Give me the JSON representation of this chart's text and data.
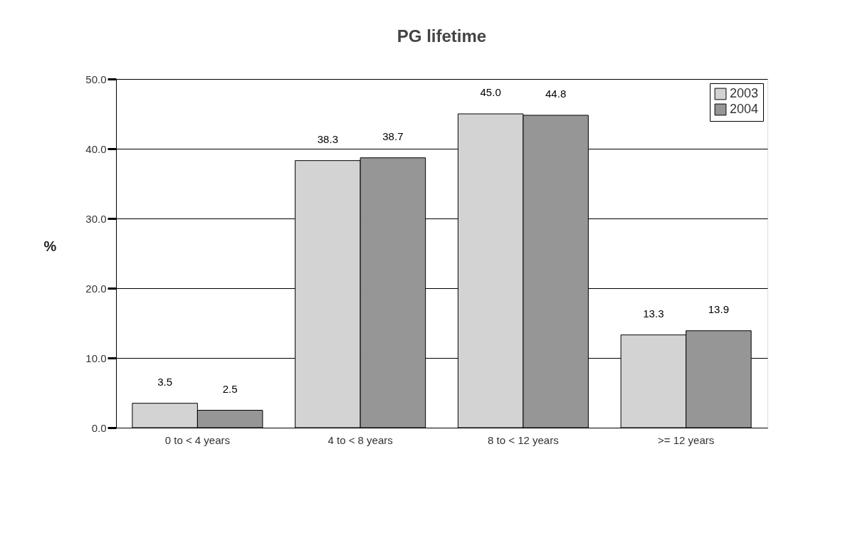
{
  "chart_data": {
    "type": "bar",
    "title": "PG lifetime",
    "ylabel": "%",
    "categories": [
      "0 to < 4 years",
      "4 to < 8 years",
      "8 to < 12 years",
      ">= 12 years"
    ],
    "series": [
      {
        "name": "2003",
        "color": "#d3d3d3",
        "values": [
          3.5,
          38.3,
          45.0,
          13.3
        ],
        "value_labels": [
          "3.5",
          "38.3",
          "45.0",
          "13.3"
        ]
      },
      {
        "name": "2004",
        "color": "#969696",
        "values": [
          2.5,
          38.7,
          44.8,
          13.9
        ],
        "value_labels": [
          "2.5",
          "38.7",
          "44.8",
          "13.9"
        ]
      }
    ],
    "ylim": [
      0,
      50
    ],
    "yticks": [
      {
        "value": 0,
        "label": "0.0"
      },
      {
        "value": 10,
        "label": "10.0"
      },
      {
        "value": 20,
        "label": "20.0"
      },
      {
        "value": 30,
        "label": "30.0"
      },
      {
        "value": 40,
        "label": "40.0"
      },
      {
        "value": 50,
        "label": "50.0"
      }
    ],
    "grid": "y",
    "legend": "top right"
  }
}
